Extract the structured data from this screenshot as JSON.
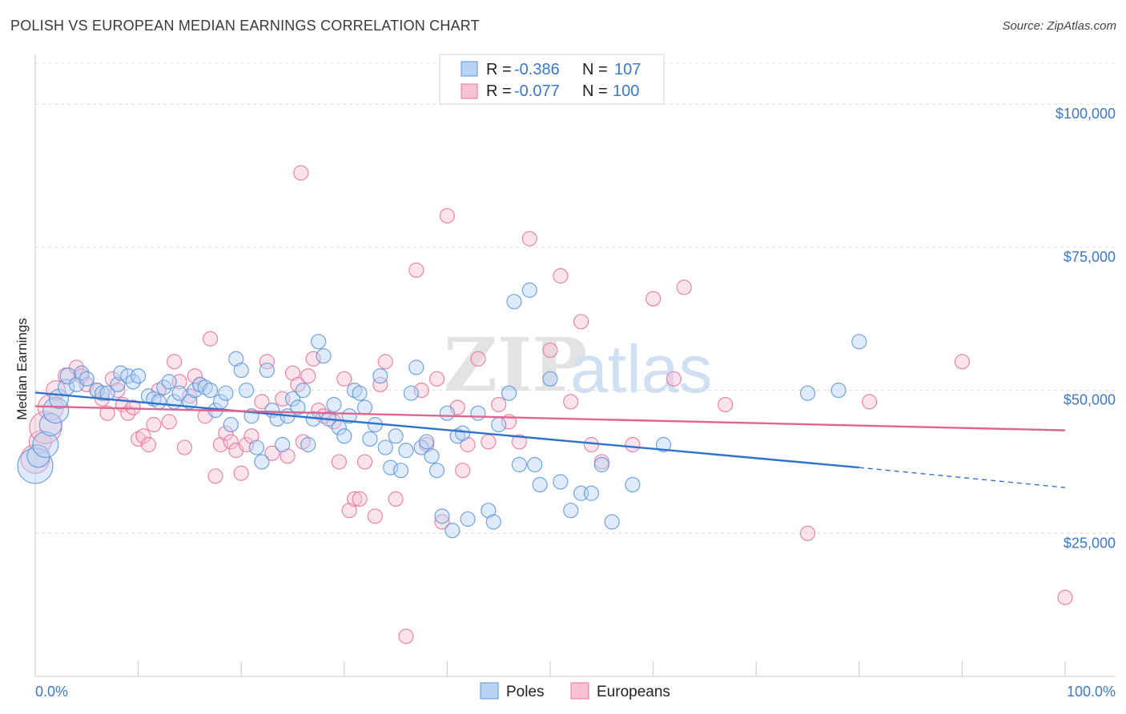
{
  "title": "POLISH VS EUROPEAN MEDIAN EARNINGS CORRELATION CHART",
  "source": "Source: ZipAtlas.com",
  "watermark": {
    "zip": "ZIP",
    "atlas": "atlas"
  },
  "colors": {
    "poles": "#5b94d9",
    "poles_fill": "#b8d3f3",
    "europeans": "#e8719a",
    "europeans_fill": "#f7c2d4",
    "tick_text": "#3b78c7",
    "grid": "#dcdcdc"
  },
  "chart_data": {
    "type": "scatter",
    "title": "POLISH VS EUROPEAN MEDIAN EARNINGS CORRELATION CHART",
    "xlabel": "",
    "ylabel": "Median Earnings",
    "xlim": [
      0,
      100
    ],
    "ylim": [
      0,
      108000
    ],
    "x_tick_labels": {
      "min": "0.0%",
      "max": "100.0%"
    },
    "y_ticks": [
      {
        "value": 25000,
        "label": "$25,000"
      },
      {
        "value": 50000,
        "label": "$50,000"
      },
      {
        "value": 75000,
        "label": "$75,000"
      },
      {
        "value": 100000,
        "label": "$100,000"
      }
    ],
    "legend": {
      "placement": "top-center",
      "rows": [
        {
          "r_label": "R = ",
          "r_value": "-0.386",
          "n_label": "N = ",
          "n_value": "107"
        },
        {
          "r_label": "R = ",
          "r_value": "-0.077",
          "n_label": "N = ",
          "n_value": "100"
        }
      ]
    },
    "series": [
      {
        "name": "Poles",
        "trend": {
          "x0": 0,
          "y0": 49600,
          "x1": 80,
          "y1": 36500,
          "dash_to_x": 100,
          "dash_to_y": 33000
        },
        "points": [
          [
            0,
            36800,
            22
          ],
          [
            0.3,
            38500,
            14
          ],
          [
            1,
            40500,
            16
          ],
          [
            1.5,
            44000,
            14
          ],
          [
            2,
            46500,
            16
          ],
          [
            2.3,
            48500,
            12
          ],
          [
            3,
            50500,
            10
          ],
          [
            3.2,
            52500,
            10
          ],
          [
            4,
            51000,
            9
          ],
          [
            4.5,
            53000,
            9
          ],
          [
            5,
            52000,
            9
          ],
          [
            6,
            50000,
            9
          ],
          [
            6.5,
            49500,
            9
          ],
          [
            7,
            49500,
            9
          ],
          [
            8,
            51000,
            9
          ],
          [
            8.3,
            53000,
            9
          ],
          [
            9,
            52500,
            9
          ],
          [
            9.5,
            51500,
            9
          ],
          [
            10,
            52500,
            9
          ],
          [
            11,
            49000,
            9
          ],
          [
            11.5,
            48500,
            9
          ],
          [
            12,
            48000,
            9
          ],
          [
            12.5,
            50500,
            9
          ],
          [
            13,
            51500,
            9
          ],
          [
            13.5,
            48000,
            9
          ],
          [
            14,
            49500,
            9
          ],
          [
            15,
            48000,
            9
          ],
          [
            15.5,
            50000,
            9
          ],
          [
            16,
            51000,
            9
          ],
          [
            16.5,
            50500,
            9
          ],
          [
            17,
            50000,
            9
          ],
          [
            17.5,
            46500,
            9
          ],
          [
            18,
            48000,
            9
          ],
          [
            18.5,
            49500,
            9
          ],
          [
            19,
            44000,
            9
          ],
          [
            19.5,
            55500,
            9
          ],
          [
            20,
            53500,
            9
          ],
          [
            20.5,
            50000,
            9
          ],
          [
            21,
            45500,
            9
          ],
          [
            21.5,
            40000,
            9
          ],
          [
            22,
            37500,
            9
          ],
          [
            22.5,
            53500,
            9
          ],
          [
            23,
            46500,
            9
          ],
          [
            23.5,
            45000,
            9
          ],
          [
            24,
            40500,
            9
          ],
          [
            24.5,
            45500,
            9
          ],
          [
            25,
            48500,
            9
          ],
          [
            25.5,
            47000,
            9
          ],
          [
            26,
            50000,
            9
          ],
          [
            26.5,
            40500,
            9
          ],
          [
            27,
            45000,
            9
          ],
          [
            27.5,
            58500,
            9
          ],
          [
            28,
            56000,
            9
          ],
          [
            28.5,
            45000,
            9
          ],
          [
            29,
            47500,
            9
          ],
          [
            29.5,
            43500,
            9
          ],
          [
            30,
            42000,
            9
          ],
          [
            30.5,
            45500,
            9
          ],
          [
            31,
            50000,
            9
          ],
          [
            31.5,
            49500,
            9
          ],
          [
            32,
            47000,
            9
          ],
          [
            32.5,
            41500,
            9
          ],
          [
            33,
            44000,
            9
          ],
          [
            33.5,
            52500,
            9
          ],
          [
            34,
            40000,
            9
          ],
          [
            34.5,
            36500,
            9
          ],
          [
            35,
            42000,
            9
          ],
          [
            35.5,
            36000,
            9
          ],
          [
            36,
            39500,
            9
          ],
          [
            36.5,
            49500,
            9
          ],
          [
            37,
            54000,
            9
          ],
          [
            37.5,
            40000,
            9
          ],
          [
            38,
            41000,
            9
          ],
          [
            38.5,
            38500,
            9
          ],
          [
            39,
            36000,
            9
          ],
          [
            39.5,
            28000,
            9
          ],
          [
            40,
            46000,
            9
          ],
          [
            40.5,
            25500,
            9
          ],
          [
            41,
            42000,
            9
          ],
          [
            41.5,
            42500,
            9
          ],
          [
            42,
            27500,
            9
          ],
          [
            43,
            46000,
            9
          ],
          [
            44,
            29000,
            9
          ],
          [
            44.5,
            27000,
            9
          ],
          [
            45,
            44000,
            9
          ],
          [
            46,
            49500,
            9
          ],
          [
            46.5,
            65500,
            9
          ],
          [
            47,
            37000,
            9
          ],
          [
            48,
            67500,
            9
          ],
          [
            48.5,
            37000,
            9
          ],
          [
            49,
            33500,
            9
          ],
          [
            50,
            52000,
            9
          ],
          [
            51,
            34000,
            9
          ],
          [
            52,
            29000,
            9
          ],
          [
            53,
            32000,
            9
          ],
          [
            54,
            32000,
            9
          ],
          [
            55,
            37000,
            9
          ],
          [
            56,
            27000,
            9
          ],
          [
            58,
            33500,
            9
          ],
          [
            61,
            40500,
            9
          ],
          [
            75,
            49500,
            9
          ],
          [
            78,
            50000,
            9
          ],
          [
            80,
            58500,
            9
          ]
        ]
      },
      {
        "name": "Europeans",
        "trend": {
          "x0": 0,
          "y0": 47200,
          "x1": 100,
          "y1": 43000
        },
        "points": [
          [
            0,
            38000,
            18
          ],
          [
            0.5,
            41000,
            14
          ],
          [
            1,
            43500,
            20
          ],
          [
            1.5,
            47000,
            16
          ],
          [
            2,
            50000,
            12
          ],
          [
            3,
            52500,
            10
          ],
          [
            4,
            54000,
            9
          ],
          [
            4.5,
            52500,
            9
          ],
          [
            5,
            51000,
            9
          ],
          [
            6,
            50000,
            9
          ],
          [
            6.5,
            48500,
            9
          ],
          [
            7,
            46000,
            9
          ],
          [
            7.5,
            52000,
            9
          ],
          [
            8,
            50000,
            9
          ],
          [
            8.5,
            47500,
            9
          ],
          [
            9,
            46000,
            9
          ],
          [
            9.5,
            47000,
            9
          ],
          [
            10,
            41500,
            9
          ],
          [
            10.5,
            42000,
            9
          ],
          [
            11,
            40500,
            9
          ],
          [
            11.5,
            44000,
            9
          ],
          [
            12,
            50000,
            9
          ],
          [
            13,
            44500,
            9
          ],
          [
            13.5,
            55000,
            9
          ],
          [
            14,
            51500,
            9
          ],
          [
            14.5,
            40000,
            9
          ],
          [
            15,
            49000,
            9
          ],
          [
            15.5,
            52500,
            9
          ],
          [
            16,
            51000,
            9
          ],
          [
            16.5,
            45500,
            9
          ],
          [
            17,
            59000,
            9
          ],
          [
            17.5,
            35000,
            9
          ],
          [
            18,
            40500,
            9
          ],
          [
            18.5,
            42500,
            9
          ],
          [
            19,
            41000,
            9
          ],
          [
            19.5,
            39500,
            9
          ],
          [
            20,
            35500,
            9
          ],
          [
            20.5,
            40500,
            9
          ],
          [
            21,
            42000,
            9
          ],
          [
            22,
            48000,
            9
          ],
          [
            22.5,
            55000,
            9
          ],
          [
            23,
            39000,
            9
          ],
          [
            24,
            48500,
            9
          ],
          [
            24.5,
            38500,
            9
          ],
          [
            25,
            53000,
            9
          ],
          [
            25.5,
            51000,
            9
          ],
          [
            25.8,
            88000,
            9
          ],
          [
            26,
            41000,
            9
          ],
          [
            26.5,
            52500,
            9
          ],
          [
            27,
            55500,
            9
          ],
          [
            27.5,
            46500,
            9
          ],
          [
            28,
            45500,
            9
          ],
          [
            29,
            44500,
            9
          ],
          [
            29.5,
            37500,
            9
          ],
          [
            30,
            52000,
            9
          ],
          [
            30.5,
            29000,
            9
          ],
          [
            31,
            31000,
            9
          ],
          [
            31.5,
            31000,
            9
          ],
          [
            32,
            37500,
            9
          ],
          [
            33,
            28000,
            9
          ],
          [
            33.5,
            51000,
            9
          ],
          [
            34,
            55000,
            9
          ],
          [
            35,
            31000,
            9
          ],
          [
            36,
            7000,
            9
          ],
          [
            37,
            71000,
            9
          ],
          [
            37.5,
            50000,
            9
          ],
          [
            38,
            40500,
            9
          ],
          [
            39,
            52000,
            9
          ],
          [
            39.5,
            27000,
            9
          ],
          [
            40,
            80500,
            9
          ],
          [
            41,
            47000,
            9
          ],
          [
            41.5,
            36000,
            9
          ],
          [
            42,
            40500,
            9
          ],
          [
            43,
            55500,
            9
          ],
          [
            44,
            41000,
            9
          ],
          [
            45,
            47500,
            9
          ],
          [
            46,
            44500,
            9
          ],
          [
            47,
            41000,
            9
          ],
          [
            48,
            76500,
            9
          ],
          [
            50,
            57000,
            9
          ],
          [
            51,
            70000,
            9
          ],
          [
            52,
            48000,
            9
          ],
          [
            53,
            62000,
            9
          ],
          [
            54,
            40500,
            9
          ],
          [
            55,
            37500,
            9
          ],
          [
            58,
            40500,
            9
          ],
          [
            60,
            66000,
            9
          ],
          [
            62,
            52000,
            9
          ],
          [
            63,
            68000,
            9
          ],
          [
            67,
            47500,
            9
          ],
          [
            75,
            25000,
            9
          ],
          [
            81,
            48000,
            9
          ],
          [
            90,
            55000,
            9
          ],
          [
            100,
            13800,
            9
          ]
        ]
      }
    ]
  }
}
